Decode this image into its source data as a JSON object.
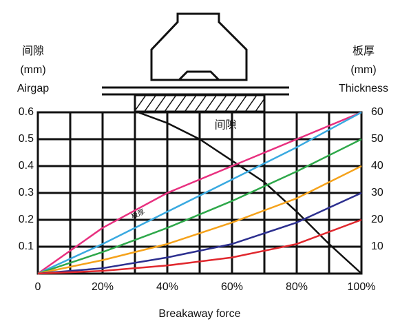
{
  "chart_data": {
    "type": "line",
    "ylabel": [
      "间隙",
      "(mm)",
      "Airgap"
    ],
    "y2label": [
      "板厚",
      "(mm)",
      "Thickness"
    ],
    "xlabel": "Breakaway force",
    "xlim": [
      0,
      100
    ],
    "xticks": [
      0,
      {
        "value": 20,
        "label": "20%"
      },
      {
        "value": 40,
        "label": "40%"
      },
      {
        "value": 60,
        "label": "60%"
      },
      {
        "value": 80,
        "label": "80%"
      },
      {
        "value": 100,
        "label": "100%"
      }
    ],
    "ylim": [
      0,
      0.6
    ],
    "yticks": [
      0.1,
      0.2,
      0.3,
      0.4,
      0.5,
      0.6
    ],
    "y2lim": [
      0,
      60
    ],
    "y2ticks": [
      10,
      20,
      30,
      40,
      50,
      60
    ],
    "grid": true,
    "annotations": [
      {
        "text": "间隙",
        "x": 58,
        "y": 0.55
      },
      {
        "text": "板厚",
        "x": 31,
        "y": 0.22
      }
    ],
    "series": [
      {
        "color": "#111111",
        "axis": "y",
        "x": [
          31,
          40,
          50,
          60,
          70,
          80,
          90,
          100
        ],
        "values": [
          0.6,
          0.56,
          0.5,
          0.42,
          0.34,
          0.23,
          0.11,
          0
        ]
      },
      {
        "color": "#e8307f",
        "axis": "y2",
        "x": [
          0,
          20,
          40,
          60,
          80,
          100
        ],
        "values": [
          0,
          17,
          30,
          40,
          50,
          60
        ]
      },
      {
        "color": "#39a9e0",
        "axis": "y2",
        "x": [
          0,
          20,
          40,
          60,
          80,
          100
        ],
        "values": [
          0,
          11,
          23,
          35,
          47,
          60
        ]
      },
      {
        "color": "#2ea84a",
        "axis": "y2",
        "x": [
          0,
          20,
          40,
          60,
          80,
          100
        ],
        "values": [
          0,
          8,
          17,
          27,
          38,
          50
        ]
      },
      {
        "color": "#f5a21b",
        "axis": "y2",
        "x": [
          0,
          20,
          40,
          60,
          80,
          100
        ],
        "values": [
          0,
          5,
          11,
          19,
          28,
          40
        ]
      },
      {
        "color": "#2c2f8f",
        "axis": "y2",
        "x": [
          0,
          20,
          40,
          60,
          80,
          100
        ],
        "values": [
          0,
          2,
          6,
          11,
          19,
          30
        ]
      },
      {
        "color": "#e0282e",
        "axis": "y2",
        "x": [
          0,
          20,
          40,
          60,
          80,
          100
        ],
        "values": [
          0,
          1,
          3,
          6,
          11,
          20
        ]
      }
    ]
  }
}
